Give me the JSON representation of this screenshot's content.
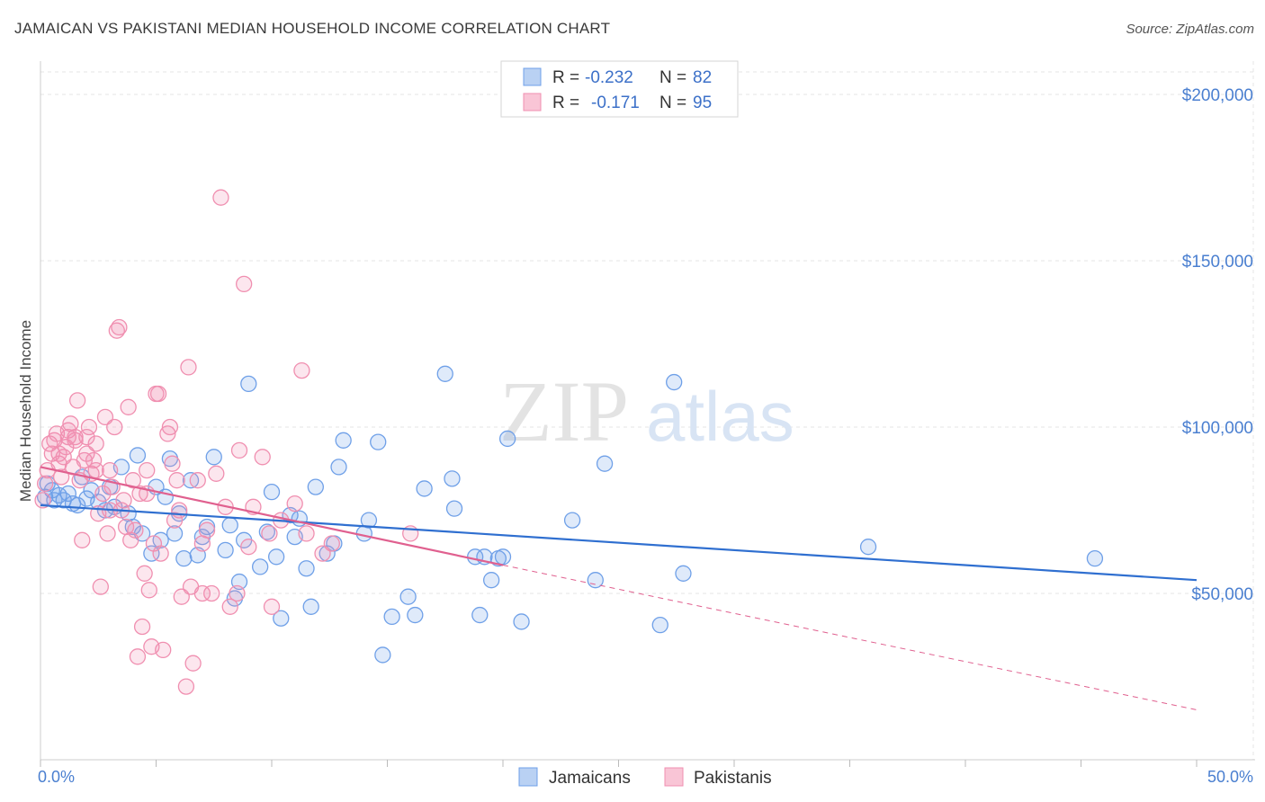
{
  "title": "JAMAICAN VS PAKISTANI MEDIAN HOUSEHOLD INCOME CORRELATION CHART",
  "source": "Source: ZipAtlas.com",
  "watermark": {
    "zip": "ZIP",
    "atlas": "atlas"
  },
  "legend": {
    "r_label": "R =",
    "n_label": "N =",
    "rows": [
      {
        "r": "-0.232",
        "n": "82",
        "color": "#6fa0e8"
      },
      {
        "r": "-0.171",
        "n": "95",
        "color": "#f08fb0"
      }
    ]
  },
  "bottom_legend": [
    "Jamaicans",
    "Pakistanis"
  ],
  "chart_data": {
    "type": "scatter",
    "title": "JAMAICAN VS PAKISTANI MEDIAN HOUSEHOLD INCOME CORRELATION CHART",
    "ylabel": "Median Household Income",
    "xlabel": "",
    "xlim": [
      0,
      50
    ],
    "ylim": [
      0,
      210000
    ],
    "x_tick_labels": [
      "0.0%",
      "50.0%"
    ],
    "y_ticks": [
      50000,
      100000,
      150000,
      200000
    ],
    "y_tick_labels": [
      "$50,000",
      "$100,000",
      "$150,000",
      "$200,000"
    ],
    "grid": true,
    "legend_position": "top-center",
    "series": [
      {
        "name": "Jamaicans",
        "color": "#6fa0e8",
        "trend": {
          "x0": 0,
          "y0": 76500,
          "x1": 50,
          "y1": 54000
        },
        "points": [
          [
            0.2,
            79000
          ],
          [
            0.3,
            83000
          ],
          [
            0.5,
            81000
          ],
          [
            0.6,
            78000
          ],
          [
            0.8,
            79500
          ],
          [
            1.0,
            78000
          ],
          [
            1.2,
            80000
          ],
          [
            1.4,
            77000
          ],
          [
            1.6,
            76500
          ],
          [
            1.8,
            85000
          ],
          [
            2.0,
            78500
          ],
          [
            2.2,
            81000
          ],
          [
            2.5,
            77500
          ],
          [
            2.8,
            75000
          ],
          [
            3.0,
            82000
          ],
          [
            3.2,
            76000
          ],
          [
            3.5,
            88000
          ],
          [
            3.8,
            74000
          ],
          [
            4.0,
            70000
          ],
          [
            4.2,
            91500
          ],
          [
            4.4,
            68000
          ],
          [
            4.8,
            62000
          ],
          [
            5.0,
            82000
          ],
          [
            5.2,
            66000
          ],
          [
            5.4,
            79000
          ],
          [
            5.6,
            90500
          ],
          [
            5.8,
            68000
          ],
          [
            6.0,
            74000
          ],
          [
            6.2,
            60500
          ],
          [
            6.5,
            84000
          ],
          [
            6.8,
            61500
          ],
          [
            7.0,
            67000
          ],
          [
            7.2,
            70000
          ],
          [
            7.5,
            91000
          ],
          [
            8.0,
            63000
          ],
          [
            8.2,
            70500
          ],
          [
            8.4,
            48500
          ],
          [
            8.6,
            53500
          ],
          [
            8.8,
            66000
          ],
          [
            9.0,
            113000
          ],
          [
            9.5,
            58000
          ],
          [
            9.8,
            68500
          ],
          [
            10.0,
            80500
          ],
          [
            10.2,
            61000
          ],
          [
            10.4,
            42500
          ],
          [
            10.8,
            73500
          ],
          [
            11.0,
            67000
          ],
          [
            11.2,
            72500
          ],
          [
            11.5,
            57500
          ],
          [
            11.7,
            46000
          ],
          [
            11.9,
            82000
          ],
          [
            12.4,
            62000
          ],
          [
            12.7,
            65000
          ],
          [
            12.9,
            88000
          ],
          [
            13.1,
            96000
          ],
          [
            14.0,
            68000
          ],
          [
            14.2,
            72000
          ],
          [
            14.6,
            95500
          ],
          [
            14.8,
            31500
          ],
          [
            15.2,
            43000
          ],
          [
            15.9,
            49000
          ],
          [
            16.2,
            43500
          ],
          [
            16.6,
            81500
          ],
          [
            17.5,
            116000
          ],
          [
            17.8,
            84500
          ],
          [
            17.9,
            75500
          ],
          [
            19.0,
            43500
          ],
          [
            19.2,
            61000
          ],
          [
            19.5,
            54000
          ],
          [
            20.0,
            61000
          ],
          [
            20.2,
            96500
          ],
          [
            20.8,
            41500
          ],
          [
            23.0,
            72000
          ],
          [
            24.0,
            54000
          ],
          [
            24.4,
            89000
          ],
          [
            26.8,
            40500
          ],
          [
            27.4,
            113500
          ],
          [
            27.8,
            56000
          ],
          [
            35.8,
            64000
          ],
          [
            45.6,
            60500
          ],
          [
            19.8,
            60500
          ],
          [
            18.8,
            61000
          ]
        ]
      },
      {
        "name": "Pakistanis",
        "color": "#f08fb0",
        "trend": {
          "x0": 0,
          "y0": 88000,
          "x1": 20,
          "y1": 58500
        },
        "trend_dashed": {
          "x0": 20,
          "y0": 58500,
          "x1": 50,
          "y1": 15000
        },
        "points": [
          [
            0.1,
            78000
          ],
          [
            0.2,
            83000
          ],
          [
            0.3,
            87000
          ],
          [
            0.4,
            95000
          ],
          [
            0.5,
            92000
          ],
          [
            0.6,
            96000
          ],
          [
            0.7,
            98000
          ],
          [
            0.8,
            89000
          ],
          [
            0.9,
            85000
          ],
          [
            1.0,
            91000
          ],
          [
            1.1,
            94000
          ],
          [
            1.2,
            99000
          ],
          [
            1.3,
            101000
          ],
          [
            1.4,
            88000
          ],
          [
            1.5,
            96000
          ],
          [
            1.6,
            108000
          ],
          [
            1.7,
            84000
          ],
          [
            1.8,
            66000
          ],
          [
            1.9,
            90000
          ],
          [
            2.0,
            92000
          ],
          [
            2.1,
            100000
          ],
          [
            2.2,
            86000
          ],
          [
            2.3,
            90000
          ],
          [
            2.4,
            95000
          ],
          [
            2.5,
            74000
          ],
          [
            2.6,
            52000
          ],
          [
            2.7,
            80000
          ],
          [
            2.8,
            103000
          ],
          [
            2.9,
            68000
          ],
          [
            3.0,
            87000
          ],
          [
            3.1,
            82000
          ],
          [
            3.2,
            100000
          ],
          [
            3.3,
            129000
          ],
          [
            3.4,
            130000
          ],
          [
            3.5,
            75000
          ],
          [
            3.6,
            78000
          ],
          [
            3.7,
            70000
          ],
          [
            3.8,
            106000
          ],
          [
            3.9,
            66000
          ],
          [
            4.0,
            84000
          ],
          [
            4.1,
            69000
          ],
          [
            4.2,
            31000
          ],
          [
            4.3,
            80000
          ],
          [
            4.4,
            40000
          ],
          [
            4.5,
            56000
          ],
          [
            4.6,
            87000
          ],
          [
            4.7,
            51000
          ],
          [
            4.8,
            34000
          ],
          [
            4.9,
            65000
          ],
          [
            5.0,
            110000
          ],
          [
            5.1,
            110000
          ],
          [
            5.2,
            62000
          ],
          [
            5.3,
            33000
          ],
          [
            5.5,
            98000
          ],
          [
            5.6,
            100000
          ],
          [
            5.7,
            89000
          ],
          [
            5.9,
            84000
          ],
          [
            6.0,
            75000
          ],
          [
            6.1,
            49000
          ],
          [
            6.3,
            22000
          ],
          [
            6.4,
            118000
          ],
          [
            6.5,
            52000
          ],
          [
            6.6,
            29000
          ],
          [
            6.8,
            84000
          ],
          [
            7.0,
            65000
          ],
          [
            7.2,
            69000
          ],
          [
            7.4,
            50000
          ],
          [
            7.6,
            86000
          ],
          [
            7.8,
            169000
          ],
          [
            8.0,
            76000
          ],
          [
            8.2,
            46000
          ],
          [
            8.5,
            50000
          ],
          [
            8.6,
            93000
          ],
          [
            8.8,
            143000
          ],
          [
            9.0,
            64000
          ],
          [
            9.2,
            76000
          ],
          [
            9.6,
            91000
          ],
          [
            9.9,
            68000
          ],
          [
            10.0,
            46000
          ],
          [
            10.4,
            72000
          ],
          [
            11.0,
            77000
          ],
          [
            11.3,
            117000
          ],
          [
            11.5,
            68000
          ],
          [
            12.2,
            62000
          ],
          [
            12.6,
            65000
          ],
          [
            16.0,
            68000
          ],
          [
            1.5,
            97000
          ],
          [
            2.0,
            97000
          ],
          [
            0.8,
            92000
          ],
          [
            1.2,
            97000
          ],
          [
            2.4,
            87000
          ],
          [
            3.0,
            75000
          ],
          [
            4.6,
            80000
          ],
          [
            5.8,
            72000
          ],
          [
            7.0,
            50000
          ]
        ]
      }
    ]
  }
}
